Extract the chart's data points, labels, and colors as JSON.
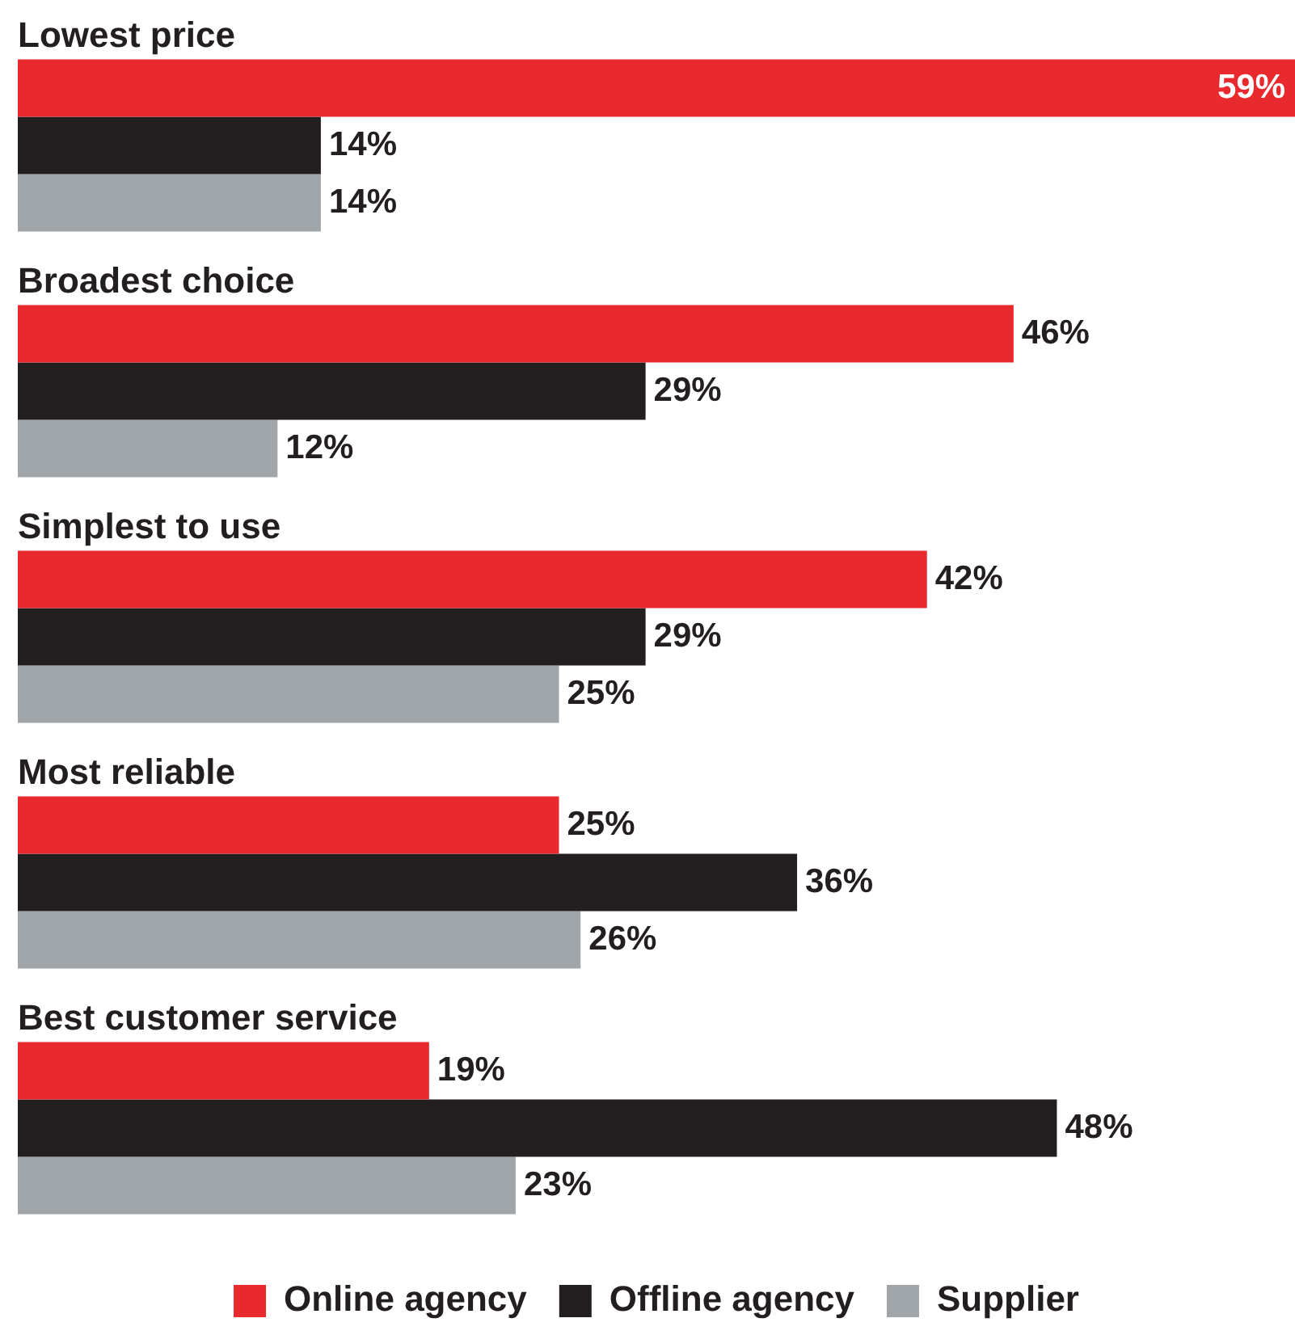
{
  "chart_data": {
    "type": "bar",
    "orientation": "horizontal",
    "legend": "bottom",
    "categories": [
      "Lowest price",
      "Broadest choice",
      "Simplest to use",
      "Most reliable",
      "Best customer service"
    ],
    "series": [
      {
        "name": "Online agency",
        "color": "#e8292e",
        "values": [
          59,
          46,
          42,
          25,
          19
        ],
        "value_labels": [
          "59%",
          "46%",
          "42%",
          "25%",
          "19%"
        ]
      },
      {
        "name": "Offline agency",
        "color": "#231f20",
        "values": [
          14,
          29,
          29,
          36,
          48
        ],
        "value_labels": [
          "14%",
          "29%",
          "29%",
          "36%",
          "48%"
        ]
      },
      {
        "name": "Supplier",
        "color": "#a0a5aa",
        "values": [
          14,
          12,
          25,
          26,
          23
        ],
        "value_labels": [
          "14%",
          "12%",
          "25%",
          "26%",
          "23%"
        ]
      }
    ]
  }
}
